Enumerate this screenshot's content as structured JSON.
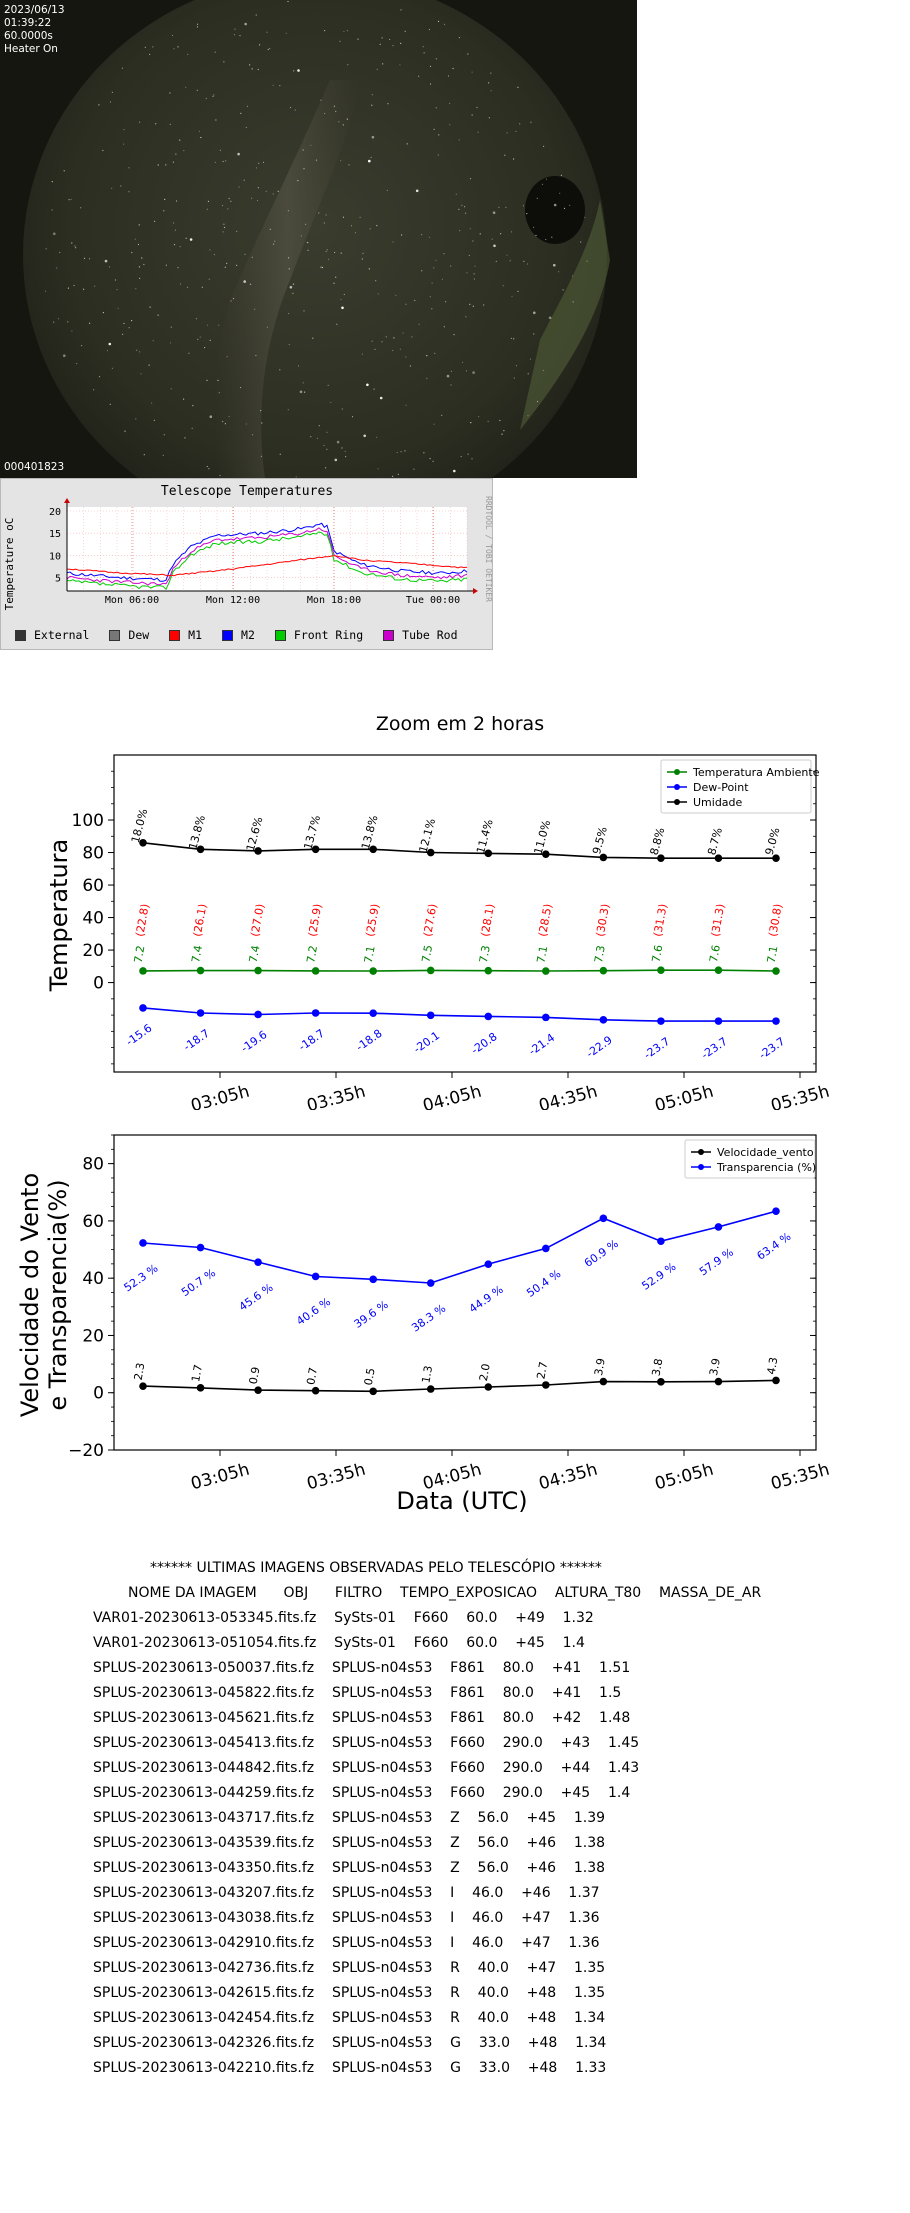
{
  "sky_camera": {
    "date": "2023/06/13",
    "time": "01:39:22",
    "exposure": "60.0000s",
    "heater": "Heater On",
    "frame_id": "000401823"
  },
  "telescope_temps": {
    "title": "Telescope Temperatures",
    "ylabel": "Temperature oC",
    "watermark": "RRDTOOL / TOBI OETIKER",
    "y_ticks": [
      "20",
      "15",
      "10",
      "5"
    ],
    "x_ticks": [
      "Mon 06:00",
      "Mon 12:00",
      "Mon 18:00",
      "Tue 00:00"
    ],
    "legend": [
      {
        "label": "External",
        "color": "#333333"
      },
      {
        "label": "Dew",
        "color": "#777777"
      },
      {
        "label": "M1",
        "color": "#ff0000"
      },
      {
        "label": "M2",
        "color": "#0000ff"
      },
      {
        "label": "Front Ring",
        "color": "#00cc00"
      },
      {
        "label": "Tube Rod",
        "color": "#cc00cc"
      }
    ]
  },
  "chart_data": [
    {
      "type": "line",
      "title": "Zoom em 2 horas",
      "ylabel": "Temperatura",
      "x_ticks": [
        "03:05h",
        "03:35h",
        "04:05h",
        "04:35h",
        "05:05h",
        "05:35h"
      ],
      "y_ticks": [
        "0",
        "20",
        "40",
        "60",
        "80",
        "100"
      ],
      "ylim": [
        -55,
        140
      ],
      "x": [
        "02:50",
        "03:05",
        "03:20",
        "03:35",
        "03:50",
        "04:05",
        "04:20",
        "04:35",
        "04:50",
        "05:05",
        "05:20",
        "05:35"
      ],
      "series": [
        {
          "name": "Temperatura Ambiente",
          "color": "#008000",
          "values": [
            7.2,
            7.4,
            7.4,
            7.2,
            7.1,
            7.5,
            7.3,
            7.1,
            7.3,
            7.6,
            7.6,
            7.1
          ],
          "labels": [
            "7.2",
            "7.4",
            "7.4",
            "7.2",
            "7.1",
            "7.5",
            "7.3",
            "7.1",
            "7.3",
            "7.6",
            "7.6",
            "7.1"
          ]
        },
        {
          "name": "Dew-Point",
          "color": "#0000ff",
          "values": [
            -15.6,
            -18.7,
            -19.6,
            -18.7,
            -18.8,
            -20.1,
            -20.8,
            -21.4,
            -22.9,
            -23.7,
            -23.7,
            -23.7
          ],
          "labels": [
            "-15.6",
            "-18.7",
            "-19.6",
            "-18.7",
            "-18.8",
            "-20.1",
            "-20.8",
            "-21.4",
            "-22.9",
            "-23.7",
            "-23.7",
            "-23.7"
          ]
        },
        {
          "name": "Umidade",
          "color": "#000000",
          "values": [
            86,
            82,
            81,
            82,
            82,
            80,
            79.5,
            79,
            77,
            76.5,
            76.5,
            76.5
          ],
          "labels": [
            "18.0%",
            "13.8%",
            "12.6%",
            "13.7%",
            "13.8%",
            "12.1%",
            "11.4%",
            "11.0%",
            "9.5%",
            "8.8%",
            "8.7%",
            "9.0%"
          ]
        }
      ],
      "annotations": {
        "color": "#ff0000",
        "labels": [
          "(22.8)",
          "(26.1)",
          "(27.0)",
          "(25.9)",
          "(25.9)",
          "(27.6)",
          "(28.1)",
          "(28.5)",
          "(30.3)",
          "(31.3)",
          "(31.3)",
          "(30.8)"
        ]
      },
      "legend_position": "top-right"
    },
    {
      "type": "line",
      "ylabel_line1": "Velocidade do Vento",
      "ylabel_line2": "e Transparencia(%)",
      "xlabel": "Data (UTC)",
      "x_ticks": [
        "03:05h",
        "03:35h",
        "04:05h",
        "04:35h",
        "05:05h",
        "05:35h"
      ],
      "y_ticks": [
        "−20",
        "0",
        "20",
        "40",
        "60",
        "80"
      ],
      "ylim": [
        -20,
        90
      ],
      "x": [
        "02:50",
        "03:05",
        "03:20",
        "03:35",
        "03:50",
        "04:05",
        "04:20",
        "04:35",
        "04:50",
        "05:05",
        "05:20",
        "05:35"
      ],
      "series": [
        {
          "name": "Velocidade_vento",
          "color": "#000000",
          "values": [
            2.3,
            1.7,
            0.9,
            0.7,
            0.5,
            1.3,
            2.0,
            2.7,
            3.9,
            3.8,
            3.9,
            4.3
          ],
          "labels": [
            "2.3",
            "1.7",
            "0.9",
            "0.7",
            "0.5",
            "1.3",
            "2.0",
            "2.7",
            "3.9",
            "3.8",
            "3.9",
            "4.3"
          ]
        },
        {
          "name": "Transparencia (%)",
          "color": "#0000ff",
          "values": [
            52.3,
            50.7,
            45.6,
            40.6,
            39.6,
            38.3,
            44.9,
            50.4,
            60.9,
            52.9,
            57.9,
            63.4
          ],
          "labels": [
            "52.3 %",
            "50.7 %",
            "45.6 %",
            "40.6 %",
            "39.6 %",
            "38.3 %",
            "44.9 %",
            "50.4 %",
            "60.9 %",
            "52.9 %",
            "57.9 %",
            "63.4 %"
          ]
        }
      ],
      "legend_position": "top-right"
    }
  ],
  "image_list": {
    "title": "****** ULTIMAS IMAGENS OBSERVADAS PELO TELESCÓPIO ******",
    "header": "NOME DA IMAGEM      OBJ      FILTRO    TEMPO_EXPOSICAO    ALTURA_T80    MASSA_DE_AR",
    "rows": [
      "VAR01-20230613-053345.fits.fz    SySts-01    F660    60.0    +49    1.32",
      "VAR01-20230613-051054.fits.fz    SySts-01    F660    60.0    +45    1.4",
      "SPLUS-20230613-050037.fits.fz    SPLUS-n04s53    F861    80.0    +41    1.51",
      "SPLUS-20230613-045822.fits.fz    SPLUS-n04s53    F861    80.0    +41    1.5",
      "SPLUS-20230613-045621.fits.fz    SPLUS-n04s53    F861    80.0    +42    1.48",
      "SPLUS-20230613-045413.fits.fz    SPLUS-n04s53    F660    290.0    +43    1.45",
      "SPLUS-20230613-044842.fits.fz    SPLUS-n04s53    F660    290.0    +44    1.43",
      "SPLUS-20230613-044259.fits.fz    SPLUS-n04s53    F660    290.0    +45    1.4",
      "SPLUS-20230613-043717.fits.fz    SPLUS-n04s53    Z    56.0    +45    1.39",
      "SPLUS-20230613-043539.fits.fz    SPLUS-n04s53    Z    56.0    +46    1.38",
      "SPLUS-20230613-043350.fits.fz    SPLUS-n04s53    Z    56.0    +46    1.38",
      "SPLUS-20230613-043207.fits.fz    SPLUS-n04s53    I    46.0    +46    1.37",
      "SPLUS-20230613-043038.fits.fz    SPLUS-n04s53    I    46.0    +47    1.36",
      "SPLUS-20230613-042910.fits.fz    SPLUS-n04s53    I    46.0    +47    1.36",
      "SPLUS-20230613-042736.fits.fz    SPLUS-n04s53    R    40.0    +47    1.35",
      "SPLUS-20230613-042615.fits.fz    SPLUS-n04s53    R    40.0    +48    1.35",
      "SPLUS-20230613-042454.fits.fz    SPLUS-n04s53    R    40.0    +48    1.34",
      "SPLUS-20230613-042326.fits.fz    SPLUS-n04s53    G    33.0    +48    1.34",
      "SPLUS-20230613-042210.fits.fz    SPLUS-n04s53    G    33.0    +48    1.33"
    ]
  }
}
